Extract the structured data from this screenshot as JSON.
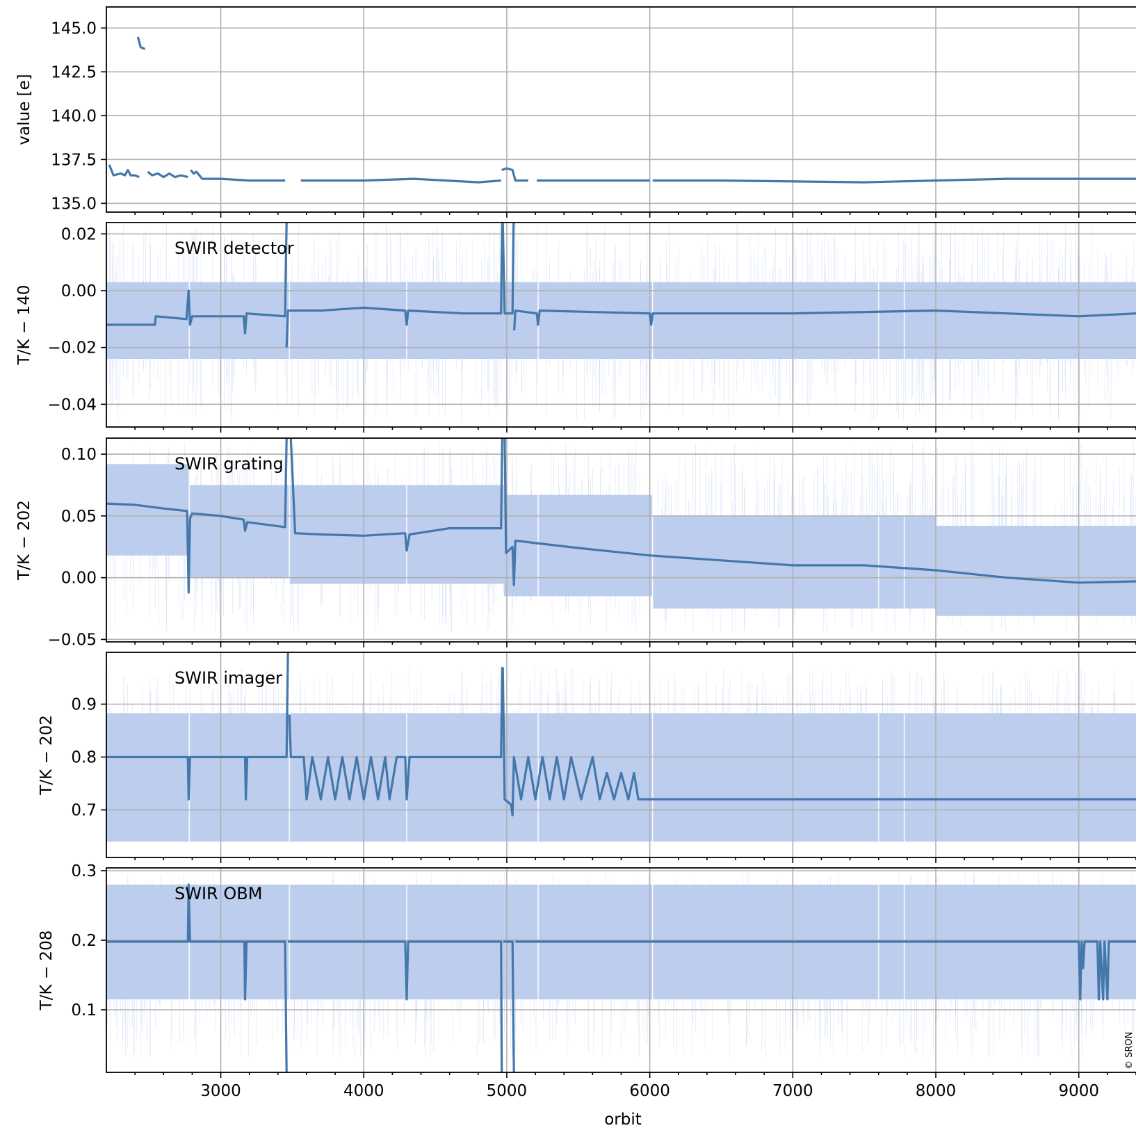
{
  "figure": {
    "xlabel": "orbit",
    "copyright": "© SRON",
    "xlim": [
      2200,
      9400
    ],
    "xticks": [
      3000,
      4000,
      5000,
      6000,
      7000,
      8000,
      9000
    ],
    "xtick_labels": [
      "3000",
      "4000",
      "5000",
      "6000",
      "7000",
      "8000",
      "9000"
    ]
  },
  "chart_data": [
    {
      "type": "line",
      "panel_label": "",
      "ylabel": "value [e]",
      "ylim": [
        134.5,
        146.2
      ],
      "yticks": [
        135.0,
        137.5,
        140.0,
        142.5,
        145.0
      ],
      "ytick_labels": [
        "135.0",
        "137.5",
        "140.0",
        "142.5",
        "145.0"
      ],
      "color": "#4477aa",
      "band_color": "#bccdee",
      "grid": true,
      "segments": [
        [
          [
            2220,
            137.2
          ],
          [
            2250,
            136.6
          ],
          [
            2300,
            136.7
          ],
          [
            2330,
            136.6
          ],
          [
            2350,
            136.9
          ],
          [
            2370,
            136.6
          ],
          [
            2400,
            136.6
          ],
          [
            2430,
            136.5
          ]
        ],
        [
          [
            2420,
            144.5
          ],
          [
            2440,
            143.9
          ],
          [
            2470,
            143.8
          ]
        ],
        [
          [
            2490,
            136.8
          ],
          [
            2520,
            136.6
          ],
          [
            2560,
            136.7
          ],
          [
            2600,
            136.5
          ],
          [
            2640,
            136.7
          ],
          [
            2680,
            136.5
          ],
          [
            2720,
            136.6
          ],
          [
            2770,
            136.5
          ]
        ],
        [
          [
            2790,
            136.9
          ],
          [
            2810,
            136.7
          ],
          [
            2830,
            136.8
          ],
          [
            2870,
            136.4
          ],
          [
            3000,
            136.4
          ],
          [
            3200,
            136.3
          ],
          [
            3450,
            136.3
          ]
        ],
        [
          [
            3560,
            136.3
          ],
          [
            4000,
            136.3
          ],
          [
            4350,
            136.4
          ],
          [
            4800,
            136.2
          ],
          [
            4960,
            136.3
          ]
        ],
        [
          [
            4965,
            136.9
          ],
          [
            5000,
            137.0
          ],
          [
            5040,
            136.9
          ],
          [
            5060,
            136.3
          ],
          [
            5150,
            136.3
          ]
        ],
        [
          [
            5210,
            136.3
          ],
          [
            6000,
            136.3
          ]
        ],
        [
          [
            6020,
            136.3
          ],
          [
            6500,
            136.3
          ],
          [
            7500,
            136.2
          ],
          [
            8000,
            136.3
          ],
          [
            8500,
            136.4
          ],
          [
            9000,
            136.4
          ],
          [
            9400,
            136.4
          ]
        ]
      ]
    },
    {
      "type": "line",
      "panel_label": "SWIR detector",
      "ylabel": "T/K − 140",
      "ylim": [
        -0.048,
        0.024
      ],
      "yticks": [
        -0.04,
        -0.02,
        0.0,
        0.02
      ],
      "ytick_labels": [
        "−0.04",
        "−0.02",
        "0.00",
        "0.02"
      ],
      "color": "#4477aa",
      "band_color": "#bccdee",
      "band": [
        -0.024,
        0.003
      ],
      "band_gaps": [
        2780,
        3480,
        4300,
        5220,
        6020,
        7600,
        7780
      ],
      "spike_range": [
        -0.046,
        0.024
      ],
      "grid": true,
      "segments": [
        [
          [
            2200,
            -0.012
          ],
          [
            2540,
            -0.012
          ],
          [
            2545,
            -0.009
          ],
          [
            2760,
            -0.01
          ],
          [
            2775,
            0.0
          ],
          [
            2785,
            -0.012
          ],
          [
            2800,
            -0.009
          ],
          [
            3160,
            -0.009
          ],
          [
            3170,
            -0.015
          ],
          [
            3180,
            -0.008
          ],
          [
            3450,
            -0.009
          ],
          [
            3460,
            0.024
          ]
        ],
        [
          [
            3460,
            -0.02
          ],
          [
            3470,
            -0.007
          ],
          [
            3700,
            -0.007
          ],
          [
            4000,
            -0.006
          ],
          [
            4290,
            -0.007
          ],
          [
            4300,
            -0.012
          ],
          [
            4310,
            -0.007
          ],
          [
            4700,
            -0.008
          ],
          [
            4960,
            -0.008
          ],
          [
            4968,
            0.024
          ]
        ],
        [
          [
            4972,
            0.024
          ],
          [
            4985,
            -0.008
          ],
          [
            5040,
            -0.008
          ],
          [
            5048,
            0.024
          ]
        ],
        [
          [
            5052,
            -0.014
          ],
          [
            5060,
            -0.007
          ],
          [
            5210,
            -0.008
          ],
          [
            5218,
            -0.012
          ],
          [
            5230,
            -0.007
          ],
          [
            6000,
            -0.008
          ],
          [
            6010,
            -0.012
          ],
          [
            6020,
            -0.008
          ],
          [
            7000,
            -0.008
          ],
          [
            8000,
            -0.007
          ],
          [
            8500,
            -0.008
          ],
          [
            9000,
            -0.009
          ],
          [
            9400,
            -0.008
          ]
        ]
      ]
    },
    {
      "type": "line",
      "panel_label": "SWIR grating",
      "ylabel": "T/K − 202",
      "ylim": [
        -0.052,
        0.113
      ],
      "yticks": [
        -0.05,
        0.0,
        0.05,
        0.1
      ],
      "ytick_labels": [
        "−0.05",
        "0.00",
        "0.05",
        "0.10"
      ],
      "color": "#4477aa",
      "band_color": "#bccdee",
      "band_steps": [
        [
          2200,
          2780,
          0.018,
          0.092
        ],
        [
          2780,
          3480,
          0.0,
          0.075
        ],
        [
          3480,
          4980,
          -0.005,
          0.075
        ],
        [
          4980,
          6020,
          -0.015,
          0.067
        ],
        [
          6020,
          8000,
          -0.025,
          0.05
        ],
        [
          8000,
          9400,
          -0.031,
          0.042
        ]
      ],
      "band_gaps": [
        2780,
        3480,
        4300,
        5220,
        6020,
        7600,
        7780
      ],
      "spike_range": [
        -0.045,
        0.11
      ],
      "grid": true,
      "segments": [
        [
          [
            2200,
            0.06
          ],
          [
            2400,
            0.059
          ],
          [
            2600,
            0.056
          ],
          [
            2765,
            0.054
          ],
          [
            2775,
            -0.012
          ],
          [
            2785,
            0.048
          ],
          [
            2800,
            0.052
          ],
          [
            3000,
            0.05
          ],
          [
            3160,
            0.047
          ],
          [
            3170,
            0.038
          ],
          [
            3185,
            0.045
          ],
          [
            3450,
            0.041
          ],
          [
            3460,
            0.113
          ]
        ],
        [
          [
            3490,
            0.113
          ],
          [
            3520,
            0.036
          ],
          [
            3700,
            0.035
          ],
          [
            4000,
            0.034
          ],
          [
            4290,
            0.036
          ],
          [
            4300,
            0.022
          ],
          [
            4320,
            0.035
          ],
          [
            4600,
            0.04
          ],
          [
            4960,
            0.04
          ],
          [
            4968,
            0.113
          ]
        ],
        [
          [
            4985,
            0.113
          ],
          [
            4995,
            0.02
          ],
          [
            5040,
            0.025
          ],
          [
            5050,
            -0.006
          ],
          [
            5060,
            0.03
          ],
          [
            5200,
            0.028
          ],
          [
            5500,
            0.024
          ],
          [
            6000,
            0.018
          ],
          [
            6500,
            0.014
          ],
          [
            7000,
            0.01
          ],
          [
            7500,
            0.01
          ],
          [
            8000,
            0.006
          ],
          [
            8500,
            0.0
          ],
          [
            9000,
            -0.004
          ],
          [
            9400,
            -0.003
          ]
        ]
      ]
    },
    {
      "type": "line",
      "panel_label": "SWIR imager",
      "ylabel": "T/K − 202",
      "ylim": [
        0.61,
        0.998
      ],
      "yticks": [
        0.7,
        0.8,
        0.9
      ],
      "ytick_labels": [
        "0.7",
        "0.8",
        "0.9"
      ],
      "color": "#4477aa",
      "band_color": "#bccdee",
      "band": [
        0.64,
        0.883
      ],
      "band_gaps": [
        2780,
        3480,
        4300,
        5220,
        6020,
        7600,
        7780
      ],
      "spike_range": [
        0.64,
        0.97
      ],
      "grid": true,
      "segments": [
        [
          [
            2200,
            0.8
          ],
          [
            2770,
            0.8
          ],
          [
            2775,
            0.72
          ],
          [
            2785,
            0.8
          ],
          [
            3170,
            0.8
          ],
          [
            3175,
            0.72
          ],
          [
            3185,
            0.8
          ],
          [
            3460,
            0.8
          ],
          [
            3470,
            0.998
          ]
        ],
        [
          [
            3480,
            0.88
          ],
          [
            3490,
            0.8
          ],
          [
            3580,
            0.8
          ],
          [
            3600,
            0.72
          ],
          [
            3640,
            0.8
          ],
          [
            3700,
            0.72
          ],
          [
            3750,
            0.8
          ],
          [
            3800,
            0.72
          ],
          [
            3850,
            0.8
          ],
          [
            3900,
            0.72
          ],
          [
            3950,
            0.8
          ],
          [
            4000,
            0.72
          ],
          [
            4050,
            0.8
          ],
          [
            4100,
            0.72
          ],
          [
            4150,
            0.8
          ],
          [
            4180,
            0.72
          ],
          [
            4230,
            0.8
          ],
          [
            4290,
            0.8
          ],
          [
            4300,
            0.72
          ],
          [
            4320,
            0.8
          ],
          [
            4960,
            0.8
          ],
          [
            4968,
            0.97
          ]
        ],
        [
          [
            4972,
            0.97
          ],
          [
            4985,
            0.72
          ],
          [
            5030,
            0.71
          ],
          [
            5040,
            0.69
          ],
          [
            5050,
            0.8
          ],
          [
            5100,
            0.72
          ],
          [
            5150,
            0.8
          ],
          [
            5200,
            0.72
          ],
          [
            5250,
            0.8
          ],
          [
            5300,
            0.72
          ],
          [
            5350,
            0.8
          ],
          [
            5400,
            0.72
          ],
          [
            5450,
            0.8
          ],
          [
            5520,
            0.72
          ],
          [
            5600,
            0.8
          ],
          [
            5650,
            0.72
          ],
          [
            5700,
            0.77
          ],
          [
            5750,
            0.72
          ],
          [
            5800,
            0.77
          ],
          [
            5850,
            0.72
          ],
          [
            5890,
            0.77
          ],
          [
            5920,
            0.72
          ],
          [
            6000,
            0.72
          ],
          [
            9400,
            0.72
          ]
        ]
      ]
    },
    {
      "type": "line",
      "panel_label": "SWIR OBM",
      "ylabel": "T/K − 208",
      "ylim": [
        0.01,
        0.304
      ],
      "yticks": [
        0.1,
        0.2,
        0.3
      ],
      "ytick_labels": [
        "0.1",
        "0.2",
        "0.3"
      ],
      "color": "#4477aa",
      "band_color": "#bccdee",
      "band": [
        0.115,
        0.28
      ],
      "band_gaps": [
        2780,
        3480,
        4300,
        5220,
        6020,
        7600,
        7780
      ],
      "spike_range": [
        0.03,
        0.3
      ],
      "grid": true,
      "segments": [
        [
          [
            2200,
            0.198
          ],
          [
            2770,
            0.198
          ],
          [
            2775,
            0.28
          ],
          [
            2785,
            0.198
          ],
          [
            3165,
            0.198
          ],
          [
            3170,
            0.115
          ],
          [
            3180,
            0.198
          ],
          [
            3450,
            0.198
          ],
          [
            3460,
            0.01
          ]
        ],
        [
          [
            3470,
            0.198
          ],
          [
            4290,
            0.198
          ],
          [
            4300,
            0.115
          ],
          [
            4310,
            0.198
          ],
          [
            4960,
            0.198
          ],
          [
            4965,
            0.01
          ]
        ],
        [
          [
            4975,
            0.198
          ],
          [
            5040,
            0.198
          ],
          [
            5050,
            0.01
          ]
        ],
        [
          [
            5060,
            0.198
          ],
          [
            9000,
            0.198
          ],
          [
            9010,
            0.115
          ],
          [
            9020,
            0.198
          ],
          [
            9030,
            0.16
          ],
          [
            9040,
            0.198
          ],
          [
            9130,
            0.198
          ],
          [
            9140,
            0.115
          ],
          [
            9150,
            0.198
          ],
          [
            9170,
            0.115
          ],
          [
            9180,
            0.198
          ],
          [
            9200,
            0.115
          ],
          [
            9210,
            0.198
          ],
          [
            9400,
            0.198
          ]
        ]
      ]
    }
  ]
}
